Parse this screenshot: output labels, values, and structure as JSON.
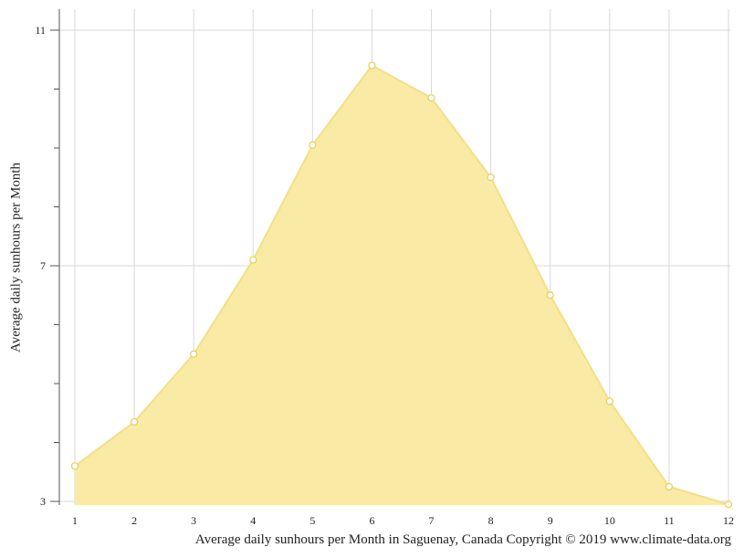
{
  "chart_data": {
    "type": "area",
    "ylabel": "Average daily sunhours per Month",
    "caption": "Average daily sunhours per Month in Saguenay, Canada Copyright © 2019 www.climate-data.org",
    "x": [
      1,
      2,
      3,
      4,
      5,
      6,
      7,
      8,
      9,
      10,
      11,
      12
    ],
    "values": [
      3.6,
      4.35,
      5.5,
      7.1,
      9.05,
      10.4,
      9.85,
      8.5,
      6.5,
      4.7,
      3.25,
      2.95
    ],
    "ylim": [
      3,
      11.3
    ],
    "yticks": [
      3,
      7,
      11
    ],
    "grid": true,
    "colors": {
      "fill": "#f9eaa6",
      "line": "#f5e07f",
      "marker_fill": "#ffffff",
      "marker_stroke": "#e9cf55",
      "grid": "#d9d9d9",
      "axis": "#555555"
    }
  }
}
